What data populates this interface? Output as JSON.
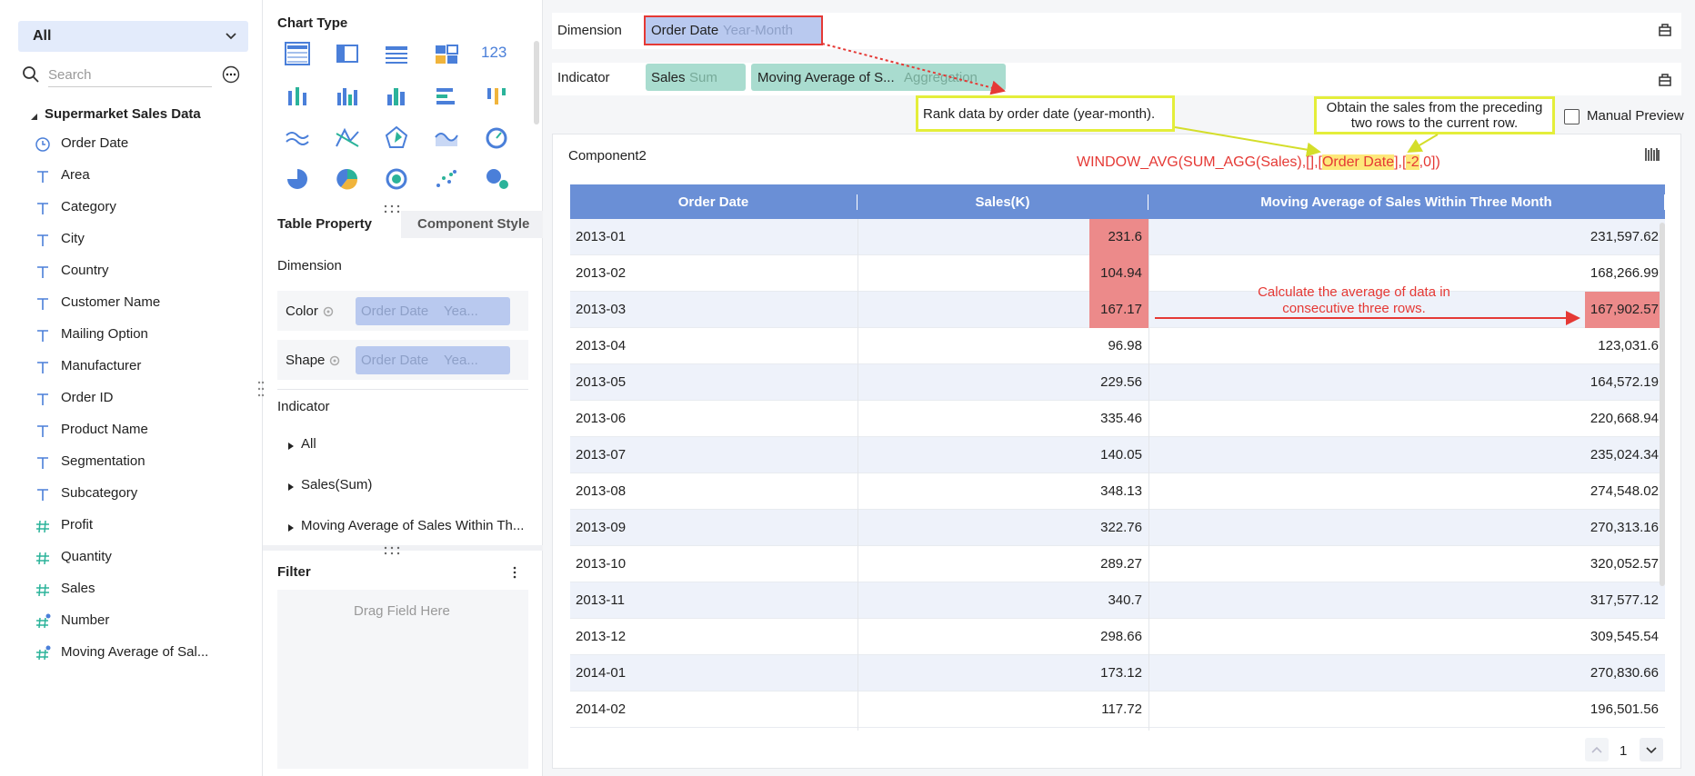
{
  "left_panel": {
    "dropdown": "All",
    "search_placeholder": "Search",
    "dataset": "Supermarket Sales Data",
    "fields": {
      "date": [
        "Order Date"
      ],
      "text": [
        "Area",
        "Category",
        "City",
        "Country",
        "Customer Name",
        "Mailing Option",
        "Manufacturer",
        "Order ID",
        "Product Name",
        "Segmentation",
        "Subcategory"
      ],
      "number": [
        "Profit",
        "Quantity",
        "Sales"
      ],
      "calculated": [
        "Number",
        "Moving Average of Sal..."
      ]
    }
  },
  "middle_panel": {
    "chart_type_title": "Chart Type",
    "number_icon": "123",
    "tabs": [
      "Table Property",
      "Component Style"
    ],
    "dimension_title": "Dimension",
    "dimension_rows": [
      {
        "label": "Color",
        "field": "Order Date",
        "granularity": "Yea..."
      },
      {
        "label": "Shape",
        "field": "Order Date",
        "granularity": "Yea..."
      }
    ],
    "indicator_title": "Indicator",
    "indicator_items": [
      "All",
      "Sales(Sum)",
      "Moving Average of Sales Within Th..."
    ],
    "filter_title": "Filter",
    "filter_placeholder": "Drag Field Here"
  },
  "right_panel": {
    "dimension_label": "Dimension",
    "dimension_chip": {
      "field": "Order Date",
      "granularity": "Year-Month"
    },
    "indicator_label": "Indicator",
    "indicator_chips": [
      {
        "field": "Sales",
        "aggregation": "Sum"
      },
      {
        "field": "Moving Average of S...",
        "aggregation": "Aggregation"
      }
    ],
    "manual_preview": "Manual Preview",
    "annotations": {
      "rank": "Rank data by order date (year-month).",
      "preceding": [
        "Obtain the sales from the preceding",
        "two rows to the current row."
      ],
      "average": [
        "Calculate the average of data in",
        "consecutive three rows."
      ]
    },
    "component": {
      "title": "Component2",
      "formula": [
        "WINDOW_AVG(SUM_AGG(Sales),[],[",
        "Order Date",
        "],[",
        "-2",
        ",0])"
      ],
      "table": {
        "columns": [
          "Order Date",
          "Sales(K)",
          "Moving Average of Sales Within Three Month"
        ],
        "rows": [
          [
            "2013-01",
            "231.6",
            "231,597.62"
          ],
          [
            "2013-02",
            "104.94",
            "168,266.99"
          ],
          [
            "2013-03",
            "167.17",
            "167,902.57"
          ],
          [
            "2013-04",
            "96.98",
            "123,031.6"
          ],
          [
            "2013-05",
            "229.56",
            "164,572.19"
          ],
          [
            "2013-06",
            "335.46",
            "220,668.94"
          ],
          [
            "2013-07",
            "140.05",
            "235,024.34"
          ],
          [
            "2013-08",
            "348.13",
            "274,548.02"
          ],
          [
            "2013-09",
            "322.76",
            "270,313.16"
          ],
          [
            "2013-10",
            "289.27",
            "320,052.57"
          ],
          [
            "2013-11",
            "340.7",
            "317,577.12"
          ],
          [
            "2013-12",
            "298.66",
            "309,545.54"
          ],
          [
            "2014-01",
            "173.12",
            "270,830.66"
          ],
          [
            "2014-02",
            "117.72",
            "196,501.56"
          ]
        ],
        "highlight": [
          [
            0,
            1
          ],
          [
            1,
            1
          ],
          [
            2,
            1
          ],
          [
            2,
            2
          ]
        ]
      },
      "page": "1"
    }
  }
}
